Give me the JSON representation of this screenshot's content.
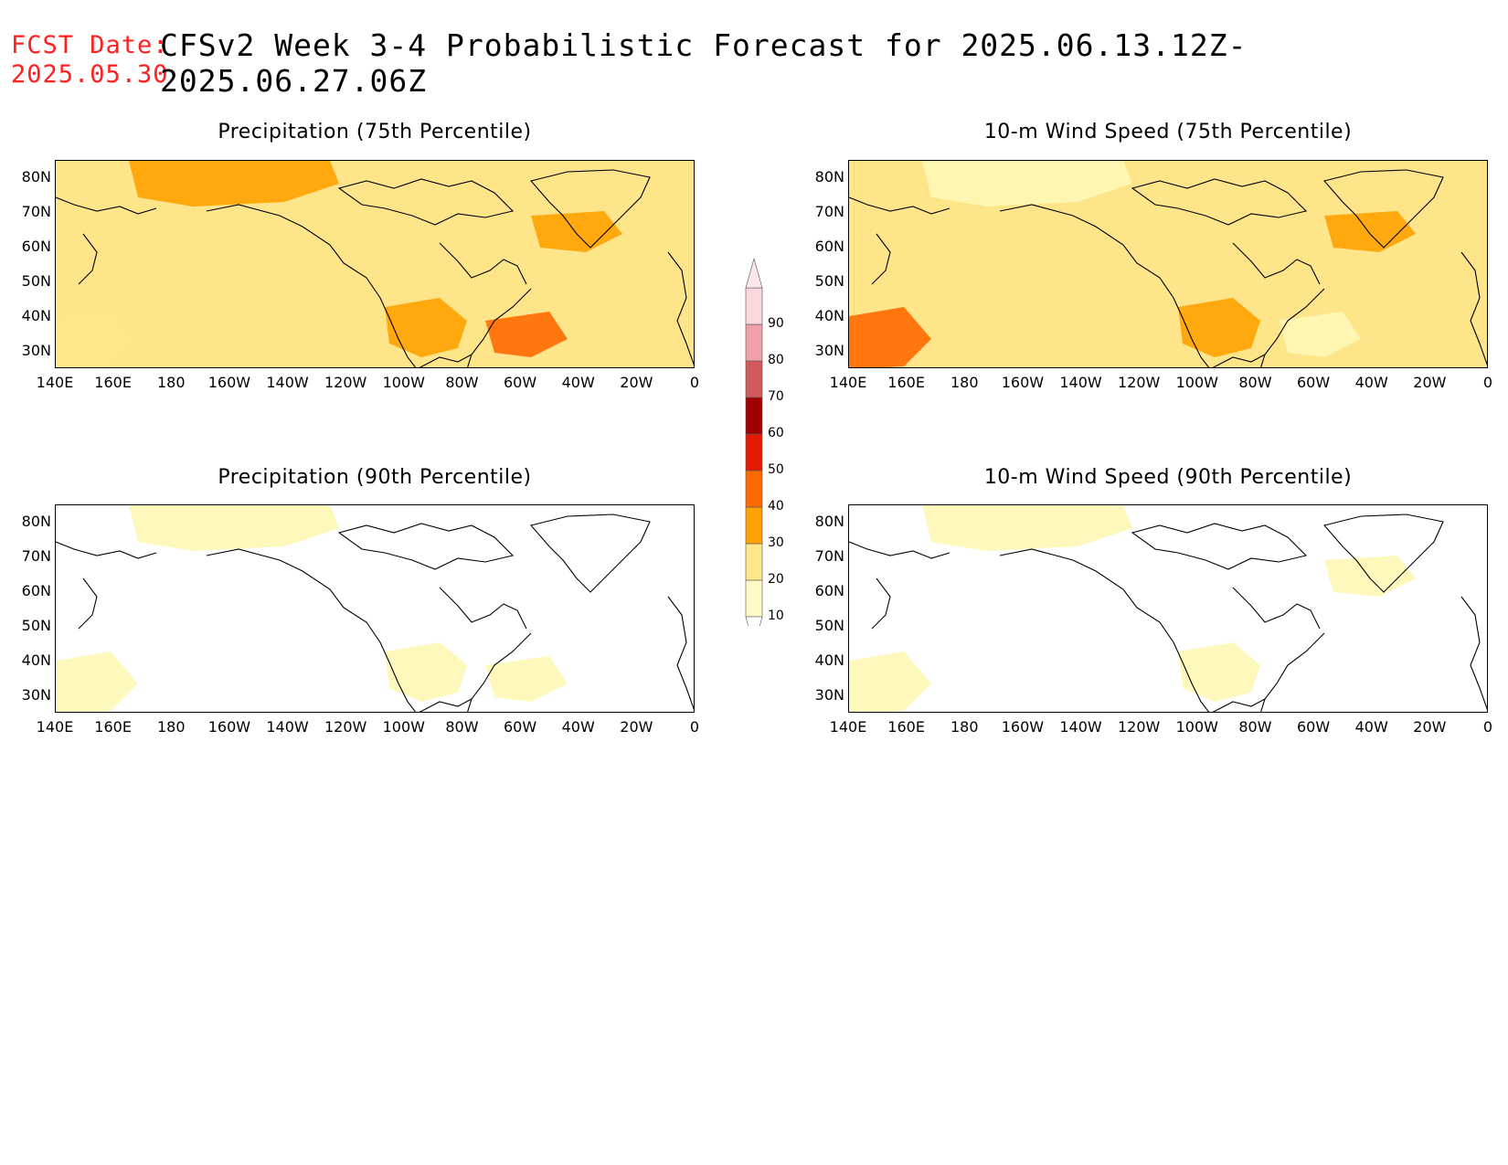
{
  "header": {
    "fcst_label": "FCST Date:",
    "fcst_date": "2025.05.30",
    "title": "CFSv2 Week 3-4 Probabilistic Forecast for 2025.06.13.12Z-2025.06.27.06Z"
  },
  "axes": {
    "lat_labels": [
      "80N",
      "70N",
      "60N",
      "50N",
      "40N",
      "30N"
    ],
    "lon_labels": [
      "140E",
      "160E",
      "180",
      "160W",
      "140W",
      "120W",
      "100W",
      "80W",
      "60W",
      "40W",
      "20W",
      "0"
    ]
  },
  "panels": [
    {
      "title": "Precipitation (75th Percentile)",
      "intensity": "high"
    },
    {
      "title": "10-m Wind Speed (75th Percentile)",
      "intensity": "medium"
    },
    {
      "title": "Precipitation (90th Percentile)",
      "intensity": "low"
    },
    {
      "title": "10-m Wind Speed (90th Percentile)",
      "intensity": "verylow"
    }
  ],
  "colorbar": {
    "levels": [
      "10",
      "20",
      "30",
      "40",
      "50",
      "60",
      "70",
      "80",
      "90"
    ],
    "colors": [
      "#fff9c8",
      "#ffe88a",
      "#ffa200",
      "#ff6a00",
      "#e61a00",
      "#a00000",
      "#d25a5a",
      "#f0a0a8",
      "#fcd8dc"
    ]
  },
  "colors": {
    "title_red": "#ff2020",
    "light_yellow": "#fff7b5",
    "yellow": "#ffe58a",
    "orange": "#ffa200",
    "dark_orange": "#ff6a00",
    "red": "#e61a00"
  }
}
